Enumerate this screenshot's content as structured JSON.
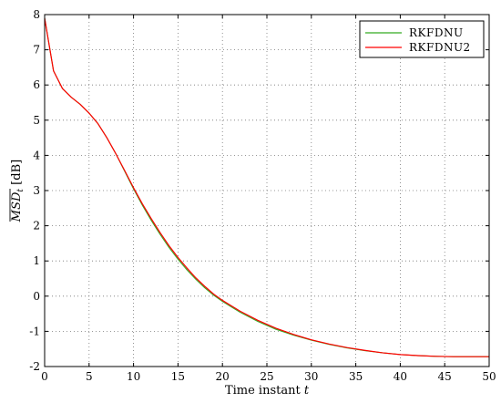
{
  "chart_data": {
    "type": "line",
    "xlabel": "Time instant t",
    "ylabel": "MSD_t [dB]",
    "xlim": [
      0,
      50
    ],
    "ylim": [
      -2,
      8
    ],
    "xticks": [
      "0",
      "5",
      "10",
      "15",
      "20",
      "25",
      "30",
      "35",
      "40",
      "45",
      "50"
    ],
    "yticks": [
      "-2",
      "-1",
      "0",
      "1",
      "2",
      "3",
      "4",
      "5",
      "6",
      "7",
      "8"
    ],
    "grid": true,
    "legend_position": "top-right",
    "series": [
      {
        "name": "RKFDNU",
        "color": "#33aa22",
        "x": [
          0,
          1,
          2,
          3,
          4,
          5,
          6,
          7,
          8,
          9,
          10,
          11,
          12,
          13,
          14,
          15,
          16,
          17,
          18,
          19,
          20,
          22,
          24,
          26,
          28,
          30,
          32,
          34,
          36,
          38,
          40,
          42,
          44,
          46,
          48,
          50
        ],
        "y": [
          7.9,
          6.4,
          5.9,
          5.65,
          5.45,
          5.2,
          4.9,
          4.5,
          4.05,
          3.55,
          3.05,
          2.58,
          2.15,
          1.75,
          1.38,
          1.05,
          0.75,
          0.48,
          0.24,
          0.03,
          -0.15,
          -0.46,
          -0.72,
          -0.94,
          -1.11,
          -1.25,
          -1.37,
          -1.47,
          -1.55,
          -1.61,
          -1.66,
          -1.69,
          -1.71,
          -1.72,
          -1.72,
          -1.72
        ]
      },
      {
        "name": "RKFDNU2",
        "color": "#ff0000",
        "x": [
          0,
          1,
          2,
          3,
          4,
          5,
          6,
          7,
          8,
          9,
          10,
          11,
          12,
          13,
          14,
          15,
          16,
          17,
          18,
          19,
          20,
          22,
          24,
          26,
          28,
          30,
          32,
          34,
          36,
          38,
          40,
          42,
          44,
          46,
          48,
          50
        ],
        "y": [
          7.9,
          6.4,
          5.9,
          5.65,
          5.45,
          5.2,
          4.9,
          4.5,
          4.05,
          3.57,
          3.08,
          2.62,
          2.2,
          1.8,
          1.43,
          1.1,
          0.8,
          0.52,
          0.28,
          0.06,
          -0.12,
          -0.43,
          -0.69,
          -0.91,
          -1.09,
          -1.24,
          -1.36,
          -1.46,
          -1.54,
          -1.61,
          -1.66,
          -1.69,
          -1.71,
          -1.72,
          -1.72,
          -1.72
        ]
      }
    ]
  }
}
